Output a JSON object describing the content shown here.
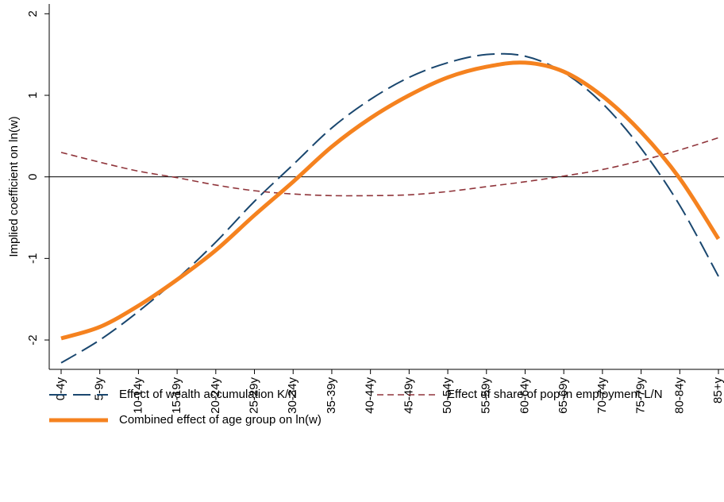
{
  "chart_data": {
    "type": "line",
    "y_label": "Implied coefficient on ln(w)",
    "categories": [
      "0-4y",
      "5-9y",
      "10-14y",
      "15-19y",
      "20-24y",
      "25-29y",
      "30-34y",
      "35-39y",
      "40-44y",
      "45-49y",
      "50-54y",
      "55-59y",
      "60-64y",
      "65-69y",
      "70-74y",
      "75-79y",
      "80-84y",
      "85+y"
    ],
    "series": [
      {
        "name": "Effect of wealth accumulation K/N",
        "color": "#1a476f",
        "dash": "long",
        "values": [
          -2.28,
          -2.0,
          -1.65,
          -1.25,
          -0.8,
          -0.3,
          0.15,
          0.6,
          0.95,
          1.22,
          1.4,
          1.5,
          1.48,
          1.28,
          0.9,
          0.35,
          -0.35,
          -1.22
        ]
      },
      {
        "name": "Effect of share of pop in employment L/N",
        "color": "#90353b",
        "dash": "short",
        "values": [
          0.3,
          0.18,
          0.07,
          -0.01,
          -0.1,
          -0.17,
          -0.21,
          -0.23,
          -0.23,
          -0.22,
          -0.18,
          -0.12,
          -0.06,
          0.01,
          0.09,
          0.2,
          0.33,
          0.48
        ]
      },
      {
        "name": "Combined effect of age group on ln(w)",
        "color": "#f5821f",
        "dash": "solid",
        "values": [
          -1.98,
          -1.84,
          -1.58,
          -1.26,
          -0.9,
          -0.47,
          -0.06,
          0.37,
          0.72,
          1.0,
          1.22,
          1.35,
          1.4,
          1.29,
          0.99,
          0.55,
          -0.02,
          -0.76
        ]
      }
    ],
    "ylim": [
      -2.36,
      2.12
    ],
    "yticks": [
      -2,
      -1,
      0,
      1,
      2
    ],
    "zero_line": true
  }
}
